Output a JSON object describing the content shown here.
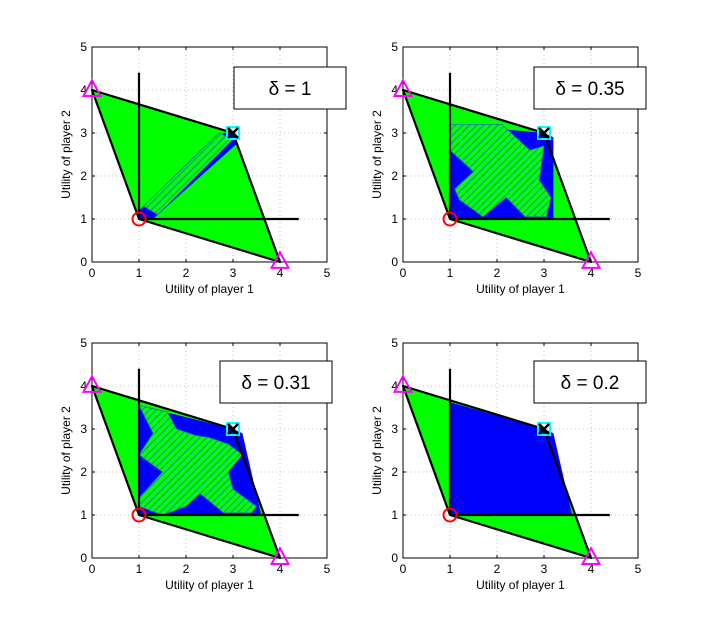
{
  "figure_title": "",
  "chart_data": [
    {
      "type": "area",
      "title": "",
      "delta_label": "δ = 1",
      "xlabel": "Utility of player 1",
      "ylabel": "Utility of player 2",
      "xlim": [
        0,
        5
      ],
      "ylim": [
        0,
        5
      ],
      "xticks": [
        "0",
        "1",
        "2",
        "3",
        "4",
        "5"
      ],
      "yticks": [
        "0",
        "1",
        "2",
        "3",
        "4",
        "5"
      ],
      "grid": true,
      "feasible_region": [
        [
          0,
          4
        ],
        [
          3,
          3
        ],
        [
          4,
          0
        ],
        [
          1,
          1
        ]
      ],
      "reference_lines": {
        "vertical_x": 1,
        "vertical_y_range": [
          1,
          4.4
        ],
        "horizontal_y": 1,
        "horizontal_x_range": [
          1,
          4.4
        ]
      },
      "blue_region": [
        [
          1,
          1
        ],
        [
          1.3,
          1
        ],
        [
          3.08,
          2.75
        ],
        [
          3,
          3
        ],
        [
          2.8,
          3.0
        ],
        [
          1.0,
          1.2
        ]
      ],
      "hatched_region": [
        [
          1.1,
          1.3
        ],
        [
          2.7,
          3.0
        ],
        [
          3.0,
          2.85
        ],
        [
          1.4,
          1.1
        ]
      ],
      "markers": [
        {
          "name": "circle",
          "x": 1,
          "y": 1,
          "color": "#ff0000"
        },
        {
          "name": "triangle",
          "x": 0,
          "y": 4,
          "color": "#ff00ff"
        },
        {
          "name": "triangle",
          "x": 4,
          "y": 0,
          "color": "#ff00ff"
        },
        {
          "name": "square",
          "x": 3,
          "y": 3,
          "color": "#00ffff"
        },
        {
          "name": "x",
          "x": 3,
          "y": 3,
          "color": "#000000"
        }
      ]
    },
    {
      "type": "area",
      "title": "",
      "delta_label": "δ = 0.35",
      "xlabel": "Utility of player 1",
      "ylabel": "Utility of player 2",
      "xlim": [
        0,
        5
      ],
      "ylim": [
        0,
        5
      ],
      "xticks": [
        "0",
        "1",
        "2",
        "3",
        "4",
        "5"
      ],
      "yticks": [
        "0",
        "1",
        "2",
        "3",
        "4",
        "5"
      ],
      "grid": true,
      "feasible_region": [
        [
          0,
          4
        ],
        [
          3,
          3
        ],
        [
          4,
          0
        ],
        [
          1,
          1
        ]
      ],
      "reference_lines": {
        "vertical_x": 1,
        "vertical_y_range": [
          1,
          4.4
        ],
        "horizontal_y": 1,
        "horizontal_x_range": [
          1,
          4.4
        ]
      },
      "blue_region": [
        [
          1,
          1
        ],
        [
          2.3,
          1
        ],
        [
          3.2,
          1.0
        ],
        [
          3.2,
          2.9
        ],
        [
          3,
          3
        ],
        [
          1.0,
          3.2
        ]
      ],
      "hatched_region": [
        [
          1.0,
          3.2
        ],
        [
          2.1,
          3.2
        ],
        [
          2.7,
          2.6
        ],
        [
          3.0,
          2.7
        ],
        [
          2.9,
          1.9
        ],
        [
          3.15,
          1.5
        ],
        [
          3.05,
          1.05
        ],
        [
          2.6,
          1.05
        ],
        [
          2.2,
          1.5
        ],
        [
          1.7,
          1.05
        ],
        [
          1.2,
          1.45
        ],
        [
          1.1,
          1.7
        ],
        [
          1.5,
          2.1
        ],
        [
          1.0,
          2.6
        ]
      ],
      "markers": [
        {
          "name": "circle",
          "x": 1,
          "y": 1,
          "color": "#ff0000"
        },
        {
          "name": "triangle",
          "x": 0,
          "y": 4,
          "color": "#ff00ff"
        },
        {
          "name": "triangle",
          "x": 4,
          "y": 0,
          "color": "#ff00ff"
        },
        {
          "name": "square",
          "x": 3,
          "y": 3,
          "color": "#00ffff"
        },
        {
          "name": "x",
          "x": 3,
          "y": 3,
          "color": "#000000"
        }
      ]
    },
    {
      "type": "area",
      "title": "",
      "delta_label": "δ = 0.31",
      "xlabel": "Utility of player 1",
      "ylabel": "Utility of player 2",
      "xlim": [
        0,
        5
      ],
      "ylim": [
        0,
        5
      ],
      "xticks": [
        "0",
        "1",
        "2",
        "3",
        "4",
        "5"
      ],
      "yticks": [
        "0",
        "1",
        "2",
        "3",
        "4",
        "5"
      ],
      "grid": true,
      "feasible_region": [
        [
          0,
          4
        ],
        [
          3,
          3
        ],
        [
          4,
          0
        ],
        [
          1,
          1
        ]
      ],
      "reference_lines": {
        "vertical_x": 1,
        "vertical_y_range": [
          1,
          4.4
        ],
        "horizontal_y": 1,
        "horizontal_x_range": [
          1,
          4.4
        ]
      },
      "blue_region": [
        [
          1,
          1
        ],
        [
          3.6,
          1
        ],
        [
          3.2,
          2.9
        ],
        [
          3,
          3
        ],
        [
          1.0,
          3.55
        ]
      ],
      "hatched_region": [
        [
          1.0,
          3.55
        ],
        [
          1.6,
          3.4
        ],
        [
          1.8,
          3.0
        ],
        [
          2.2,
          2.85
        ],
        [
          2.5,
          2.8
        ],
        [
          2.9,
          2.65
        ],
        [
          3.2,
          2.4
        ],
        [
          2.9,
          2.0
        ],
        [
          3.0,
          1.6
        ],
        [
          3.5,
          1.2
        ],
        [
          3.4,
          1.05
        ],
        [
          2.8,
          1.05
        ],
        [
          2.3,
          1.5
        ],
        [
          2.0,
          1.2
        ],
        [
          1.5,
          1.0
        ],
        [
          1.0,
          1.2
        ],
        [
          1.0,
          1.4
        ],
        [
          1.5,
          2.0
        ],
        [
          1.0,
          2.4
        ],
        [
          1.3,
          2.9
        ]
      ],
      "markers": [
        {
          "name": "circle",
          "x": 1,
          "y": 1,
          "color": "#ff0000"
        },
        {
          "name": "triangle",
          "x": 0,
          "y": 4,
          "color": "#ff00ff"
        },
        {
          "name": "triangle",
          "x": 4,
          "y": 0,
          "color": "#ff00ff"
        },
        {
          "name": "square",
          "x": 3,
          "y": 3,
          "color": "#00ffff"
        },
        {
          "name": "x",
          "x": 3,
          "y": 3,
          "color": "#000000"
        }
      ]
    },
    {
      "type": "area",
      "title": "",
      "delta_label": "δ = 0.2",
      "xlabel": "Utility of player 1",
      "ylabel": "Utility of player 2",
      "xlim": [
        0,
        5
      ],
      "ylim": [
        0,
        5
      ],
      "xticks": [
        "0",
        "1",
        "2",
        "3",
        "4",
        "5"
      ],
      "yticks": [
        "0",
        "1",
        "2",
        "3",
        "4",
        "5"
      ],
      "grid": true,
      "feasible_region": [
        [
          0,
          4
        ],
        [
          3,
          3
        ],
        [
          4,
          0
        ],
        [
          1,
          1
        ]
      ],
      "reference_lines": {
        "vertical_x": 1,
        "vertical_y_range": [
          1,
          4.4
        ],
        "horizontal_y": 1,
        "horizontal_x_range": [
          1,
          4.4
        ]
      },
      "blue_region": [
        [
          1,
          1
        ],
        [
          3.6,
          1
        ],
        [
          3.2,
          2.9
        ],
        [
          3,
          3
        ],
        [
          1.0,
          3.62
        ]
      ],
      "hatched_region": [],
      "markers": [
        {
          "name": "circle",
          "x": 1,
          "y": 1,
          "color": "#ff0000"
        },
        {
          "name": "triangle",
          "x": 0,
          "y": 4,
          "color": "#ff00ff"
        },
        {
          "name": "triangle",
          "x": 4,
          "y": 0,
          "color": "#ff00ff"
        },
        {
          "name": "square",
          "x": 3,
          "y": 3,
          "color": "#00ffff"
        },
        {
          "name": "x",
          "x": 3,
          "y": 3,
          "color": "#000000"
        }
      ]
    }
  ],
  "colors": {
    "feasible": "#00ff00",
    "blue": "#0000ff",
    "hatch": "#22aa88",
    "outline": "#000000",
    "grid": "#b0b0b0"
  }
}
